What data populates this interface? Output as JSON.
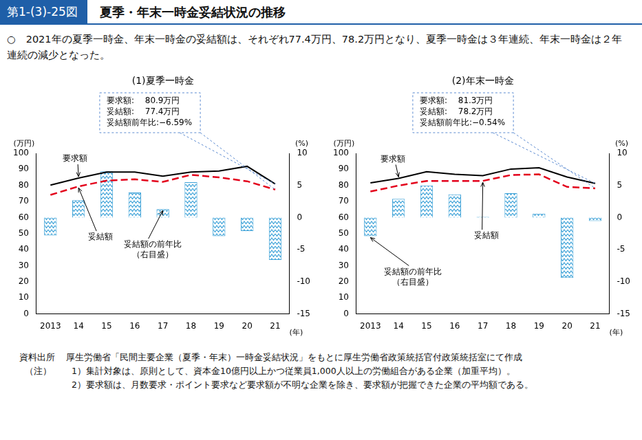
{
  "header": {
    "figure_number": "第1-(3)-25図",
    "title": "夏季・年末一時金妥結状況の推移"
  },
  "summary": "○　2021年の夏季一時金、年末一時金の妥結額は、それぞれ77.4万円、78.2万円となり、夏季一時金は３年連続、年末一時金は２年連続の減少となった。",
  "chart_data": [
    {
      "type": "bar",
      "title": "(1)夏季一時金",
      "categories": [
        "2013",
        "14",
        "15",
        "16",
        "17",
        "18",
        "19",
        "20",
        "21"
      ],
      "x_label": "(年)",
      "y_label": "(万円)",
      "y2_label": "(%)",
      "ylim": [
        0,
        100
      ],
      "yticks": [
        0,
        10,
        20,
        30,
        40,
        50,
        60,
        70,
        80,
        90,
        100
      ],
      "y2lim": [
        -15,
        10
      ],
      "y2ticks": [
        -15,
        -10,
        -5,
        0,
        5,
        10
      ],
      "grid": false,
      "annotation_box": [
        "要求額:　 80.9万円",
        "妥結額:　 77.4万円",
        "妥結額前年比:−6.59%"
      ],
      "series": [
        {
          "name": "要求額",
          "type": "line",
          "color": "#000000",
          "line_style": "solid",
          "values": [
            80.2,
            84.6,
            88.3,
            88.3,
            85.8,
            88.3,
            89.0,
            91.9,
            80.9
          ]
        },
        {
          "name": "妥結額",
          "type": "line",
          "color": "#e3001b",
          "line_style": "dashed",
          "values": [
            74.1,
            79.4,
            83.0,
            83.8,
            82.2,
            86.6,
            85.0,
            82.6,
            77.4
          ]
        },
        {
          "name": "妥結額の前年比\n（右目盛）",
          "type": "bar",
          "axis": "y2",
          "color": "#3fa3d8",
          "values": [
            -2.8,
            2.7,
            7.2,
            3.9,
            1.3,
            5.5,
            -2.9,
            -2.1,
            -6.59
          ]
        }
      ]
    },
    {
      "type": "bar",
      "title": "(2)年末一時金",
      "categories": [
        "2013",
        "14",
        "15",
        "16",
        "17",
        "18",
        "19",
        "20",
        "21"
      ],
      "x_label": "(年)",
      "y_label": "(万円)",
      "y2_label": "(%)",
      "ylim": [
        0,
        100
      ],
      "yticks": [
        0,
        10,
        20,
        30,
        40,
        50,
        60,
        70,
        80,
        90,
        100
      ],
      "y2lim": [
        -15,
        10
      ],
      "y2ticks": [
        -15,
        -10,
        -5,
        0,
        5,
        10
      ],
      "grid": false,
      "annotation_box": [
        "要求額:　 81.3万円",
        "妥結額:　 78.2万円",
        "妥結額前年比:−0.54%"
      ],
      "series": [
        {
          "name": "要求額",
          "type": "line",
          "color": "#000000",
          "line_style": "solid",
          "values": [
            81.6,
            84.4,
            88.5,
            86.9,
            86.1,
            90.2,
            91.0,
            85.2,
            81.3
          ]
        },
        {
          "name": "妥結額",
          "type": "line",
          "color": "#e3001b",
          "line_style": "dashed",
          "values": [
            76.2,
            79.9,
            82.8,
            82.8,
            82.8,
            86.5,
            86.9,
            79.1,
            78.2
          ]
        },
        {
          "name": "妥結額の前年比\n（右目盛）",
          "type": "bar",
          "axis": "y2",
          "color": "#3fa3d8",
          "values": [
            -2.9,
            2.9,
            5.0,
            3.6,
            0.1,
            3.8,
            0.6,
            -9.4,
            -0.54
          ]
        }
      ]
    }
  ],
  "notes": {
    "source_label": "資料出所",
    "source": "厚生労働省「民間主要企業（夏季・年末）一時金妥結状況」をもとに厚生労働省政策統括官付政策統括室にて作成",
    "note_label": "（注）",
    "items": [
      "1）集計対象は、原則として、資本金10億円以上かつ従業員1,000人以上の労働組合がある企業（加重平均）。",
      "2）要求額は、月数要求・ポイント要求など要求額が不明な企業を除き、要求額が把握できた企業の平均額である。"
    ]
  }
}
